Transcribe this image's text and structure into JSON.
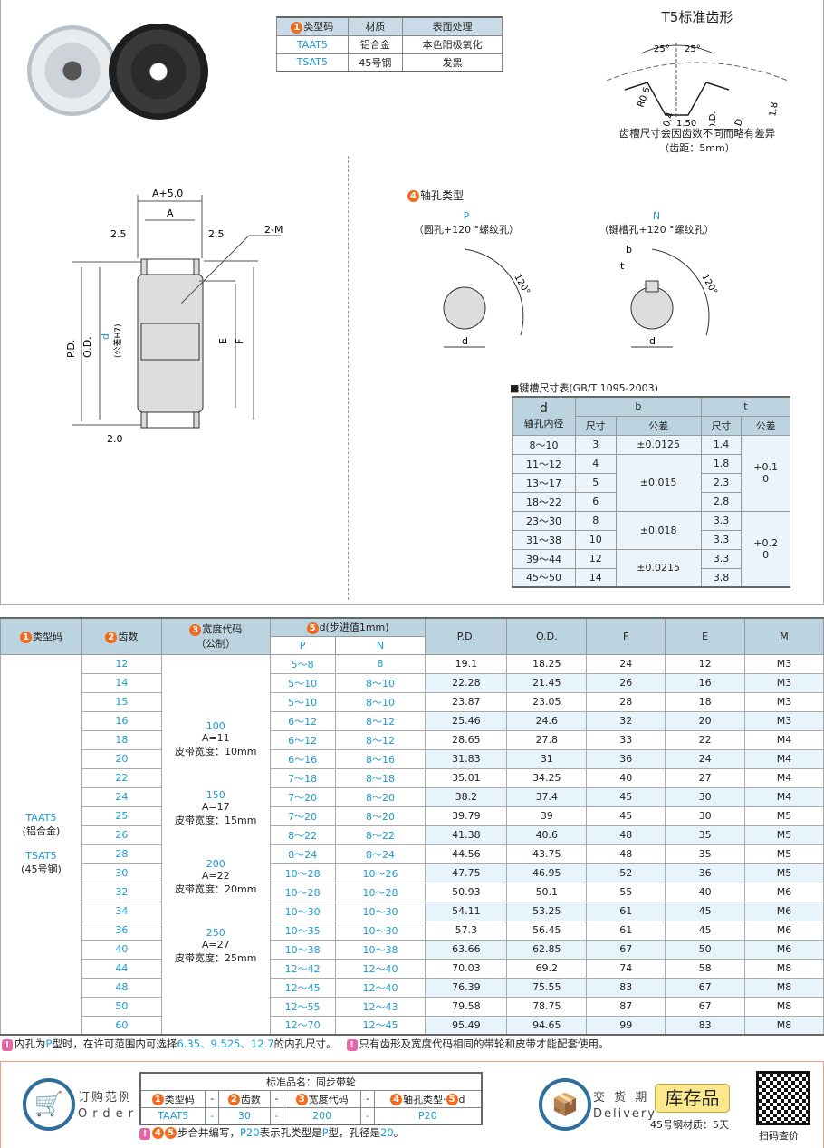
{
  "material_table": {
    "headers": [
      "类型码",
      "材质",
      "表面处理"
    ],
    "header_num": "1",
    "rows": [
      [
        "TAAT5",
        "铝合金",
        "本色阳极氧化"
      ],
      [
        "TSAT5",
        "45号钢",
        "发黑"
      ]
    ]
  },
  "tooth_profile": {
    "title": "T5标准齿形",
    "angle_left": "25°",
    "angle_right": "25°",
    "r1": "R0.6",
    "r2": "R0.4",
    "width": "1.50",
    "od": "O.D.",
    "pd": "P.D.",
    "height": "1.8",
    "note1": "齿槽尺寸会因齿数不同而略有差异",
    "note2": "（齿距：5mm）"
  },
  "pulley_drawing": {
    "a_plus": "A+5.0",
    "a": "A",
    "left": "2.5",
    "right": "2.5",
    "m": "2-M",
    "pd": "P.D.",
    "od": "O.D.",
    "d_num": "5",
    "d": "d",
    "d_tol": "(公差H7)",
    "e": "E",
    "f": "F",
    "flange": "2.0"
  },
  "bore_types": {
    "num": "4",
    "title": "轴孔类型",
    "p": {
      "code": "P",
      "desc": "（圆孔+120 °螺纹孔）",
      "angle": "120°",
      "d": "d"
    },
    "n": {
      "code": "N",
      "desc": "（键槽孔+120 °螺纹孔）",
      "angle": "120°",
      "d": "d",
      "b": "b",
      "t": "t"
    }
  },
  "keyway": {
    "title": "■键槽尺寸表(GB/T 1095-2003)",
    "h_d": "d",
    "h_d2": "轴孔内径",
    "h_b": "b",
    "h_t": "t",
    "h_size": "尺寸",
    "h_tol": "公差",
    "rows": [
      [
        "8～10",
        "3",
        "1.4"
      ],
      [
        "11～12",
        "4",
        "1.8"
      ],
      [
        "13～17",
        "5",
        "2.3"
      ],
      [
        "18～22",
        "6",
        "2.8"
      ],
      [
        "23～30",
        "8",
        "3.3"
      ],
      [
        "31～38",
        "10",
        "3.3"
      ],
      [
        "39～44",
        "12",
        "3.3"
      ],
      [
        "45～50",
        "14",
        "3.8"
      ]
    ],
    "b_tol": [
      "±0.0125",
      "±0.015",
      "±0.018",
      "±0.0215"
    ],
    "t_tol": [
      "+0.1\n0",
      "+0.2\n0"
    ]
  },
  "main_table": {
    "headers": {
      "type": "类型码",
      "teeth": "齿数",
      "width": "宽度代码",
      "width_sub": "（公制）",
      "d": "d(步进值1mm)",
      "p": "P",
      "n": "N",
      "pd": "P.D.",
      "od": "O.D.",
      "f": "F",
      "e": "E",
      "m": "M"
    },
    "type_lines": [
      "TAAT5",
      "(铝合金)",
      "TSAT5",
      "(45号钢)"
    ],
    "widths": [
      {
        "code": "100",
        "a": "A=11",
        "belt": "皮带宽度：10mm"
      },
      {
        "code": "150",
        "a": "A=17",
        "belt": "皮带宽度：15mm"
      },
      {
        "code": "200",
        "a": "A=22",
        "belt": "皮带宽度：20mm"
      },
      {
        "code": "250",
        "a": "A=27",
        "belt": "皮带宽度：25mm"
      }
    ],
    "rows": [
      [
        "12",
        "5～8",
        "8",
        "19.1",
        "18.25",
        "24",
        "12",
        "M3"
      ],
      [
        "14",
        "5～10",
        "8～10",
        "22.28",
        "21.45",
        "26",
        "16",
        "M3"
      ],
      [
        "15",
        "5～10",
        "8～10",
        "23.87",
        "23.05",
        "28",
        "18",
        "M3"
      ],
      [
        "16",
        "6～12",
        "8～12",
        "25.46",
        "24.6",
        "32",
        "20",
        "M3"
      ],
      [
        "18",
        "6～12",
        "8～12",
        "28.65",
        "27.8",
        "33",
        "22",
        "M4"
      ],
      [
        "20",
        "6～16",
        "8～16",
        "31.83",
        "31",
        "36",
        "24",
        "M4"
      ],
      [
        "22",
        "7～18",
        "8～18",
        "35.01",
        "34.25",
        "40",
        "27",
        "M4"
      ],
      [
        "24",
        "7～20",
        "8～20",
        "38.2",
        "37.4",
        "45",
        "30",
        "M4"
      ],
      [
        "25",
        "7～20",
        "8～20",
        "39.79",
        "39",
        "45",
        "30",
        "M5"
      ],
      [
        "26",
        "8～22",
        "8～22",
        "41.38",
        "40.6",
        "48",
        "35",
        "M5"
      ],
      [
        "28",
        "8～24",
        "8～24",
        "44.56",
        "43.75",
        "48",
        "35",
        "M5"
      ],
      [
        "30",
        "10～28",
        "10～26",
        "47.75",
        "46.95",
        "52",
        "36",
        "M5"
      ],
      [
        "32",
        "10～28",
        "10～28",
        "50.93",
        "50.1",
        "55",
        "40",
        "M6"
      ],
      [
        "34",
        "10～30",
        "10～30",
        "54.11",
        "53.25",
        "61",
        "45",
        "M6"
      ],
      [
        "36",
        "10～35",
        "10～30",
        "57.3",
        "56.45",
        "61",
        "45",
        "M6"
      ],
      [
        "40",
        "10～38",
        "10～38",
        "63.66",
        "62.85",
        "67",
        "50",
        "M6"
      ],
      [
        "44",
        "12～42",
        "12～40",
        "70.03",
        "69.2",
        "74",
        "58",
        "M8"
      ],
      [
        "48",
        "12～45",
        "12～40",
        "76.39",
        "75.55",
        "83",
        "67",
        "M8"
      ],
      [
        "50",
        "12～55",
        "12～43",
        "79.58",
        "78.75",
        "87",
        "67",
        "M8"
      ],
      [
        "60",
        "12～70",
        "12～45",
        "95.49",
        "94.65",
        "99",
        "83",
        "M8"
      ]
    ]
  },
  "notes": {
    "n1a": "内孔为",
    "n1p": "P",
    "n1b": "型时，在许可范围内可选择",
    "n1v": "6.35、9.525、12.7",
    "n1c": "的内孔尺寸。",
    "n2": "只有齿形及宽度代码相同的带轮和皮带才能配套使用。"
  },
  "order": {
    "label_cn": "订购范例",
    "label_en": "Order",
    "std_name": "标准品名：同步带轮",
    "h": [
      "类型码",
      "-",
      "齿数",
      "-",
      "宽度代码",
      "-",
      "轴孔类型·",
      "d"
    ],
    "v": [
      "TAAT5",
      "-",
      "30",
      "-",
      "200",
      "-",
      "P20"
    ],
    "note_a": "步合并编写，",
    "note_p20": "P20",
    "note_b": "表示孔类型是",
    "note_p": "P",
    "note_c": "型，孔径是",
    "note_20": "20",
    "note_d": "。"
  },
  "delivery": {
    "label_cn": "交 货 期",
    "label_en": "Delivery",
    "stock": "库存品",
    "detail": "45号钢材质：5天",
    "qr": "扫码查价"
  }
}
